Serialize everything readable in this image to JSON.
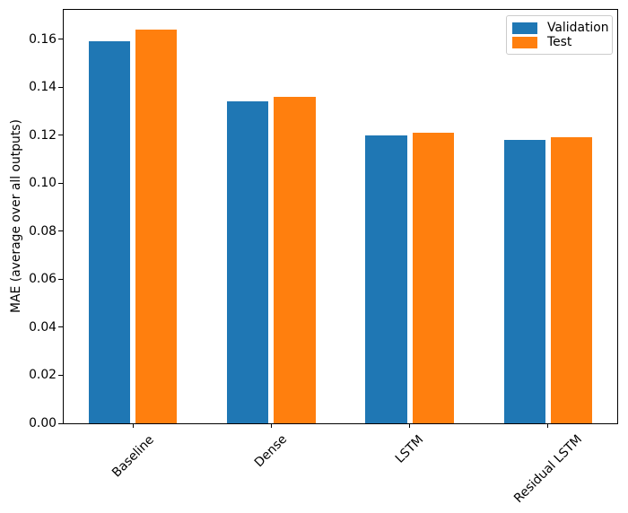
{
  "chart_data": {
    "type": "bar",
    "title": "",
    "xlabel": "",
    "ylabel": "MAE (average over all outputs)",
    "categories": [
      "Baseline",
      "Dense",
      "LSTM",
      "Residual LSTM"
    ],
    "series": [
      {
        "name": "Validation",
        "color": "#1f77b4",
        "values": [
          0.159,
          0.134,
          0.12,
          0.118
        ]
      },
      {
        "name": "Test",
        "color": "#ff7f0e",
        "values": [
          0.164,
          0.136,
          0.121,
          0.119
        ]
      }
    ],
    "ylim": [
      0,
      0.1722
    ],
    "yticks": [
      0,
      0.02,
      0.04,
      0.06,
      0.08,
      0.1,
      0.12,
      0.14,
      0.16
    ],
    "ytick_labels": [
      "0.00",
      "0.02",
      "0.04",
      "0.06",
      "0.08",
      "0.10",
      "0.12",
      "0.14",
      "0.16"
    ],
    "grid": false,
    "legend": {
      "position": "upper right",
      "entries": [
        "Validation",
        "Test"
      ]
    },
    "x_tick_rotation_deg": 45,
    "bar_width_fraction": 0.3,
    "bar_offset_fraction": 0.17,
    "colors": {
      "spine": "#000000",
      "text": "#000000",
      "legend_border": "#cccccc",
      "background": "#ffffff"
    }
  }
}
